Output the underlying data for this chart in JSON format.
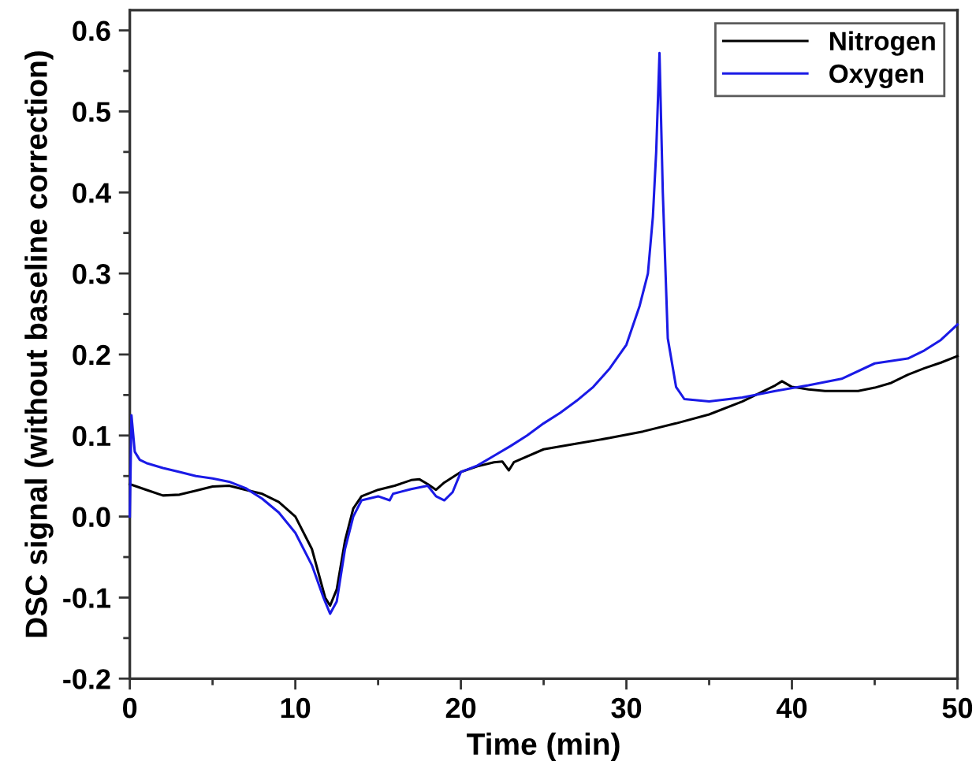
{
  "chart_data": {
    "type": "line",
    "xlabel": "Time (min)",
    "ylabel": "DSC signal (without baseline correction)",
    "xlim": [
      0,
      50
    ],
    "xticks": [
      0,
      10,
      20,
      30,
      40,
      50
    ],
    "ylim": [
      -0.2,
      0.625
    ],
    "yticks": [
      {
        "value": -0.2,
        "label": "-0.2"
      },
      {
        "value": -0.1,
        "label": "-0.1"
      },
      {
        "value": 0,
        "label": "0.0"
      },
      0.1,
      0.2,
      0.3,
      0.4,
      0.5,
      0.6
    ],
    "grid": false,
    "legend": "top right",
    "marker": "none",
    "line_style": "solid",
    "series": [
      {
        "name": "Nitrogen",
        "color": "#000000",
        "x": [
          0,
          1,
          2,
          3,
          4,
          5,
          6,
          7,
          8,
          9,
          10,
          11,
          11.8,
          12.1,
          12.5,
          13,
          13.5,
          14,
          15,
          16,
          17,
          17.5,
          18,
          18.5,
          19,
          20,
          21,
          22,
          22.5,
          22.9,
          23.2,
          25,
          27,
          29,
          31,
          33,
          35,
          37,
          38,
          39,
          39.4,
          40,
          41,
          42,
          43,
          44,
          45,
          46,
          47,
          48,
          49,
          50
        ],
        "values": [
          0.04,
          0.033,
          0.026,
          0.027,
          0.032,
          0.037,
          0.038,
          0.033,
          0.028,
          0.018,
          0.0,
          -0.04,
          -0.1,
          -0.11,
          -0.09,
          -0.03,
          0.01,
          0.025,
          0.033,
          0.038,
          0.045,
          0.046,
          0.04,
          0.033,
          0.042,
          0.055,
          0.062,
          0.067,
          0.068,
          0.057,
          0.067,
          0.083,
          0.09,
          0.097,
          0.105,
          0.115,
          0.126,
          0.142,
          0.152,
          0.162,
          0.167,
          0.16,
          0.157,
          0.155,
          0.155,
          0.155,
          0.159,
          0.165,
          0.175,
          0.183,
          0.19,
          0.198
        ]
      },
      {
        "name": "Oxygen",
        "color": "#1a1ae6",
        "x": [
          0,
          0.1,
          0.3,
          0.6,
          1,
          2,
          3,
          4,
          5,
          6,
          7,
          8,
          9,
          10,
          11,
          11.7,
          12.1,
          12.5,
          13,
          13.5,
          14,
          15,
          15.7,
          15.9,
          17,
          18,
          18.5,
          19,
          19.5,
          20,
          21,
          22,
          23,
          24,
          25,
          26,
          27,
          28,
          29,
          30,
          30.8,
          31.3,
          31.6,
          31.8,
          32,
          32.2,
          32.5,
          33,
          33.5,
          35,
          37,
          39,
          41,
          43,
          45,
          47,
          48,
          49,
          50
        ],
        "values": [
          0.0,
          0.125,
          0.08,
          0.07,
          0.066,
          0.06,
          0.055,
          0.05,
          0.047,
          0.043,
          0.035,
          0.022,
          0.005,
          -0.02,
          -0.06,
          -0.1,
          -0.12,
          -0.105,
          -0.04,
          0.0,
          0.02,
          0.025,
          0.02,
          0.028,
          0.034,
          0.038,
          0.025,
          0.02,
          0.03,
          0.055,
          0.063,
          0.075,
          0.087,
          0.1,
          0.115,
          0.128,
          0.143,
          0.16,
          0.183,
          0.212,
          0.26,
          0.3,
          0.37,
          0.45,
          0.572,
          0.4,
          0.22,
          0.16,
          0.145,
          0.142,
          0.147,
          0.155,
          0.162,
          0.17,
          0.189,
          0.195,
          0.205,
          0.218,
          0.237
        ]
      }
    ]
  }
}
